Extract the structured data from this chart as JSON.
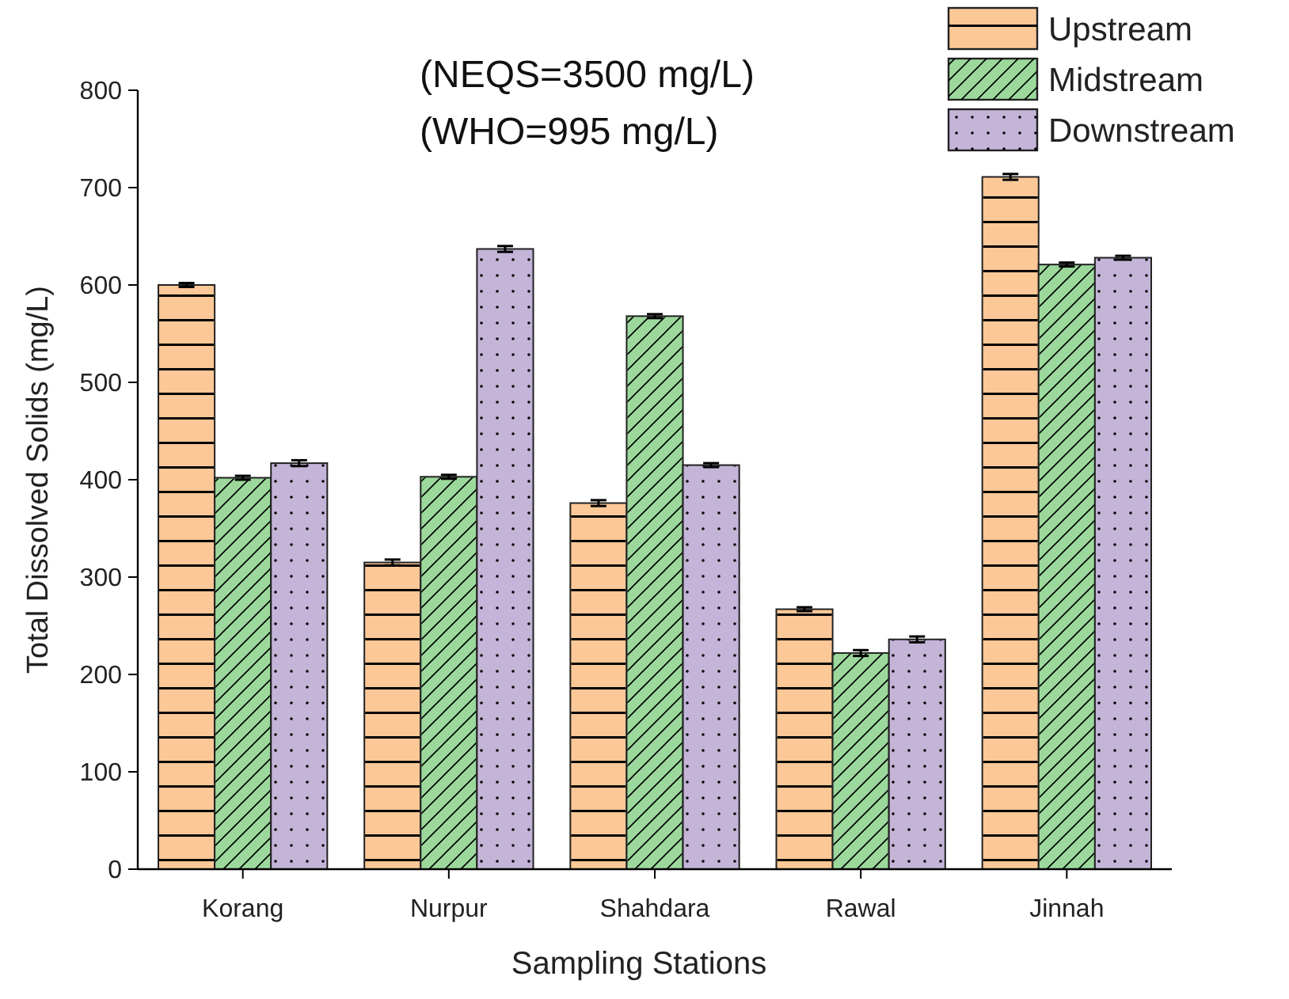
{
  "chart_data": {
    "type": "bar",
    "xlabel": "Sampling Stations",
    "ylabel": "Total Dissolved Solids (mg/L)",
    "annotations": [
      "(NEQS=3500 mg/L)",
      "(WHO=995 mg/L)"
    ],
    "categories": [
      "Korang",
      "Nurpur",
      "Shahdara",
      "Rawal",
      "Jinnah"
    ],
    "series": [
      {
        "name": "Upstream",
        "color": "#fdc897",
        "values": [
          600,
          315,
          376,
          267,
          711
        ],
        "errors": [
          2,
          3,
          3,
          2,
          3
        ]
      },
      {
        "name": "Midstream",
        "color": "#9cd89c",
        "values": [
          402,
          403,
          568,
          222,
          621
        ],
        "errors": [
          2,
          2,
          2,
          3,
          2
        ]
      },
      {
        "name": "Downstream",
        "color": "#c4b4d8",
        "values": [
          417,
          637,
          415,
          236,
          628
        ],
        "errors": [
          3,
          3,
          2,
          3,
          2
        ]
      }
    ],
    "ylim": [
      0,
      800
    ],
    "yticks": [
      0,
      100,
      200,
      300,
      400,
      500,
      600,
      700,
      800
    ],
    "grid": false,
    "legend": "top right"
  }
}
